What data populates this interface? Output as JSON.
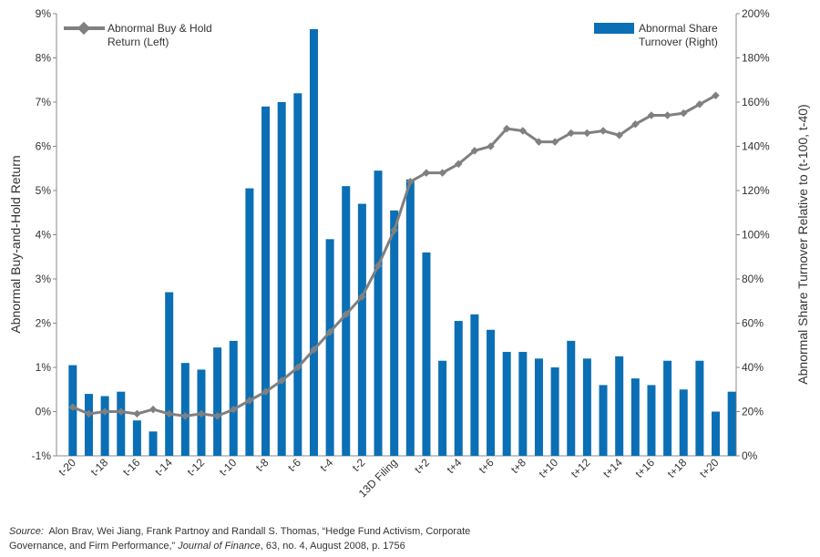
{
  "chart_data": {
    "type": "bar_line",
    "y_label": "Abnormal Buy-and-Hold Return",
    "y2_label": "Abnormal Share Turnover Relative to (t-100, t-40)",
    "categories": [
      "t-20",
      null,
      "t-18",
      null,
      "t-16",
      null,
      "t-14",
      null,
      "t-12",
      null,
      "t-10",
      null,
      "t-8",
      null,
      "t-6",
      null,
      "t-4",
      null,
      "t-2",
      null,
      "13D Filing",
      null,
      "t+2",
      null,
      "t+4",
      null,
      "t+6",
      null,
      "t+8",
      null,
      "t+10",
      null,
      "t+12",
      null,
      "t+14",
      null,
      "t+16",
      null,
      "t+18",
      null,
      "t+20",
      null
    ],
    "series": [
      {
        "name": "Abnormal Buy & Hold Return (Left)",
        "type": "line",
        "color": "#808080",
        "axis": "y",
        "values": [
          0.1,
          -0.05,
          0.0,
          0.0,
          -0.05,
          0.05,
          -0.05,
          -0.1,
          -0.05,
          -0.1,
          0.05,
          0.25,
          0.45,
          0.7,
          1.0,
          1.4,
          1.8,
          2.2,
          2.6,
          3.3,
          4.1,
          5.2,
          5.4,
          5.4,
          5.6,
          5.9,
          6.0,
          6.4,
          6.35,
          6.1,
          6.1,
          6.3,
          6.3,
          6.35,
          6.25,
          6.5,
          6.7,
          6.7,
          6.75,
          6.95,
          7.15,
          null
        ]
      },
      {
        "name": "Abnormal Share Turnover (Right)",
        "type": "bar",
        "color": "#0a6fb5",
        "axis": "y2",
        "values": [
          41,
          28,
          27,
          29,
          16,
          11,
          74,
          42,
          39,
          49,
          52,
          121,
          158,
          160,
          164,
          193,
          98,
          122,
          114,
          129,
          111,
          125,
          92,
          43,
          61,
          64,
          57,
          47,
          47,
          44,
          40,
          52,
          44,
          32,
          45,
          35,
          32,
          43,
          30,
          43,
          20,
          29
        ]
      }
    ],
    "ylim": [
      -1,
      9
    ],
    "yticks": [
      {
        "value": -1,
        "label": "-1%"
      },
      {
        "value": 0,
        "label": "0%"
      },
      {
        "value": 1,
        "label": "1%"
      },
      {
        "value": 2,
        "label": "2%"
      },
      {
        "value": 3,
        "label": "3%"
      },
      {
        "value": 4,
        "label": "4%"
      },
      {
        "value": 5,
        "label": "5%"
      },
      {
        "value": 6,
        "label": "6%"
      },
      {
        "value": 7,
        "label": "7%"
      },
      {
        "value": 8,
        "label": "8%"
      },
      {
        "value": 9,
        "label": "9%"
      }
    ],
    "y2lim": [
      0,
      200
    ],
    "y2ticks": [
      {
        "value": 0,
        "label": "0%"
      },
      {
        "value": 20,
        "label": "20%"
      },
      {
        "value": 40,
        "label": "40%"
      },
      {
        "value": 60,
        "label": "60%"
      },
      {
        "value": 80,
        "label": "80%"
      },
      {
        "value": 100,
        "label": "100%"
      },
      {
        "value": 120,
        "label": "120%"
      },
      {
        "value": 140,
        "label": "140%"
      },
      {
        "value": 160,
        "label": "160%"
      },
      {
        "value": 180,
        "label": "180%"
      },
      {
        "value": 200,
        "label": "200%"
      }
    ],
    "source": {
      "label": "Source:",
      "parts": [
        "Alon Brav, Wei Jiang, Frank Partnoy and Randall S. Thomas, “Hedge Fund Activism, Corporate Governance, and Firm Performance,” ",
        "Journal of Finance",
        ", 63, no. 4, August 2008, p. 1756"
      ]
    }
  }
}
